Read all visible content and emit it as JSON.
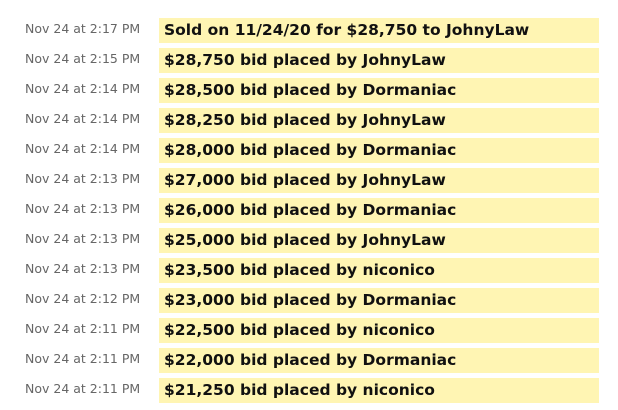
{
  "bid_history": {
    "rows": [
      {
        "time": "Nov 24 at 2:17 PM",
        "text": "Sold on 11/24/20 for $28,750 to JohnyLaw"
      },
      {
        "time": "Nov 24 at 2:15 PM",
        "text": "$28,750 bid placed by JohnyLaw"
      },
      {
        "time": "Nov 24 at 2:14 PM",
        "text": "$28,500 bid placed by Dormaniac"
      },
      {
        "time": "Nov 24 at 2:14 PM",
        "text": "$28,250 bid placed by JohnyLaw"
      },
      {
        "time": "Nov 24 at 2:14 PM",
        "text": "$28,000 bid placed by Dormaniac"
      },
      {
        "time": "Nov 24 at 2:13 PM",
        "text": "$27,000 bid placed by JohnyLaw"
      },
      {
        "time": "Nov 24 at 2:13 PM",
        "text": "$26,000 bid placed by Dormaniac"
      },
      {
        "time": "Nov 24 at 2:13 PM",
        "text": "$25,000 bid placed by JohnyLaw"
      },
      {
        "time": "Nov 24 at 2:13 PM",
        "text": "$23,500 bid placed by niconico"
      },
      {
        "time": "Nov 24 at 2:12 PM",
        "text": "$23,000 bid placed by Dormaniac"
      },
      {
        "time": "Nov 24 at 2:11 PM",
        "text": "$22,500 bid placed by niconico"
      },
      {
        "time": "Nov 24 at 2:11 PM",
        "text": "$22,000 bid placed by Dormaniac"
      },
      {
        "time": "Nov 24 at 2:11 PM",
        "text": "$21,250 bid placed by niconico"
      }
    ]
  },
  "colors": {
    "highlight": "#fff5b3",
    "time_text": "#666666",
    "desc_text": "#111111"
  }
}
